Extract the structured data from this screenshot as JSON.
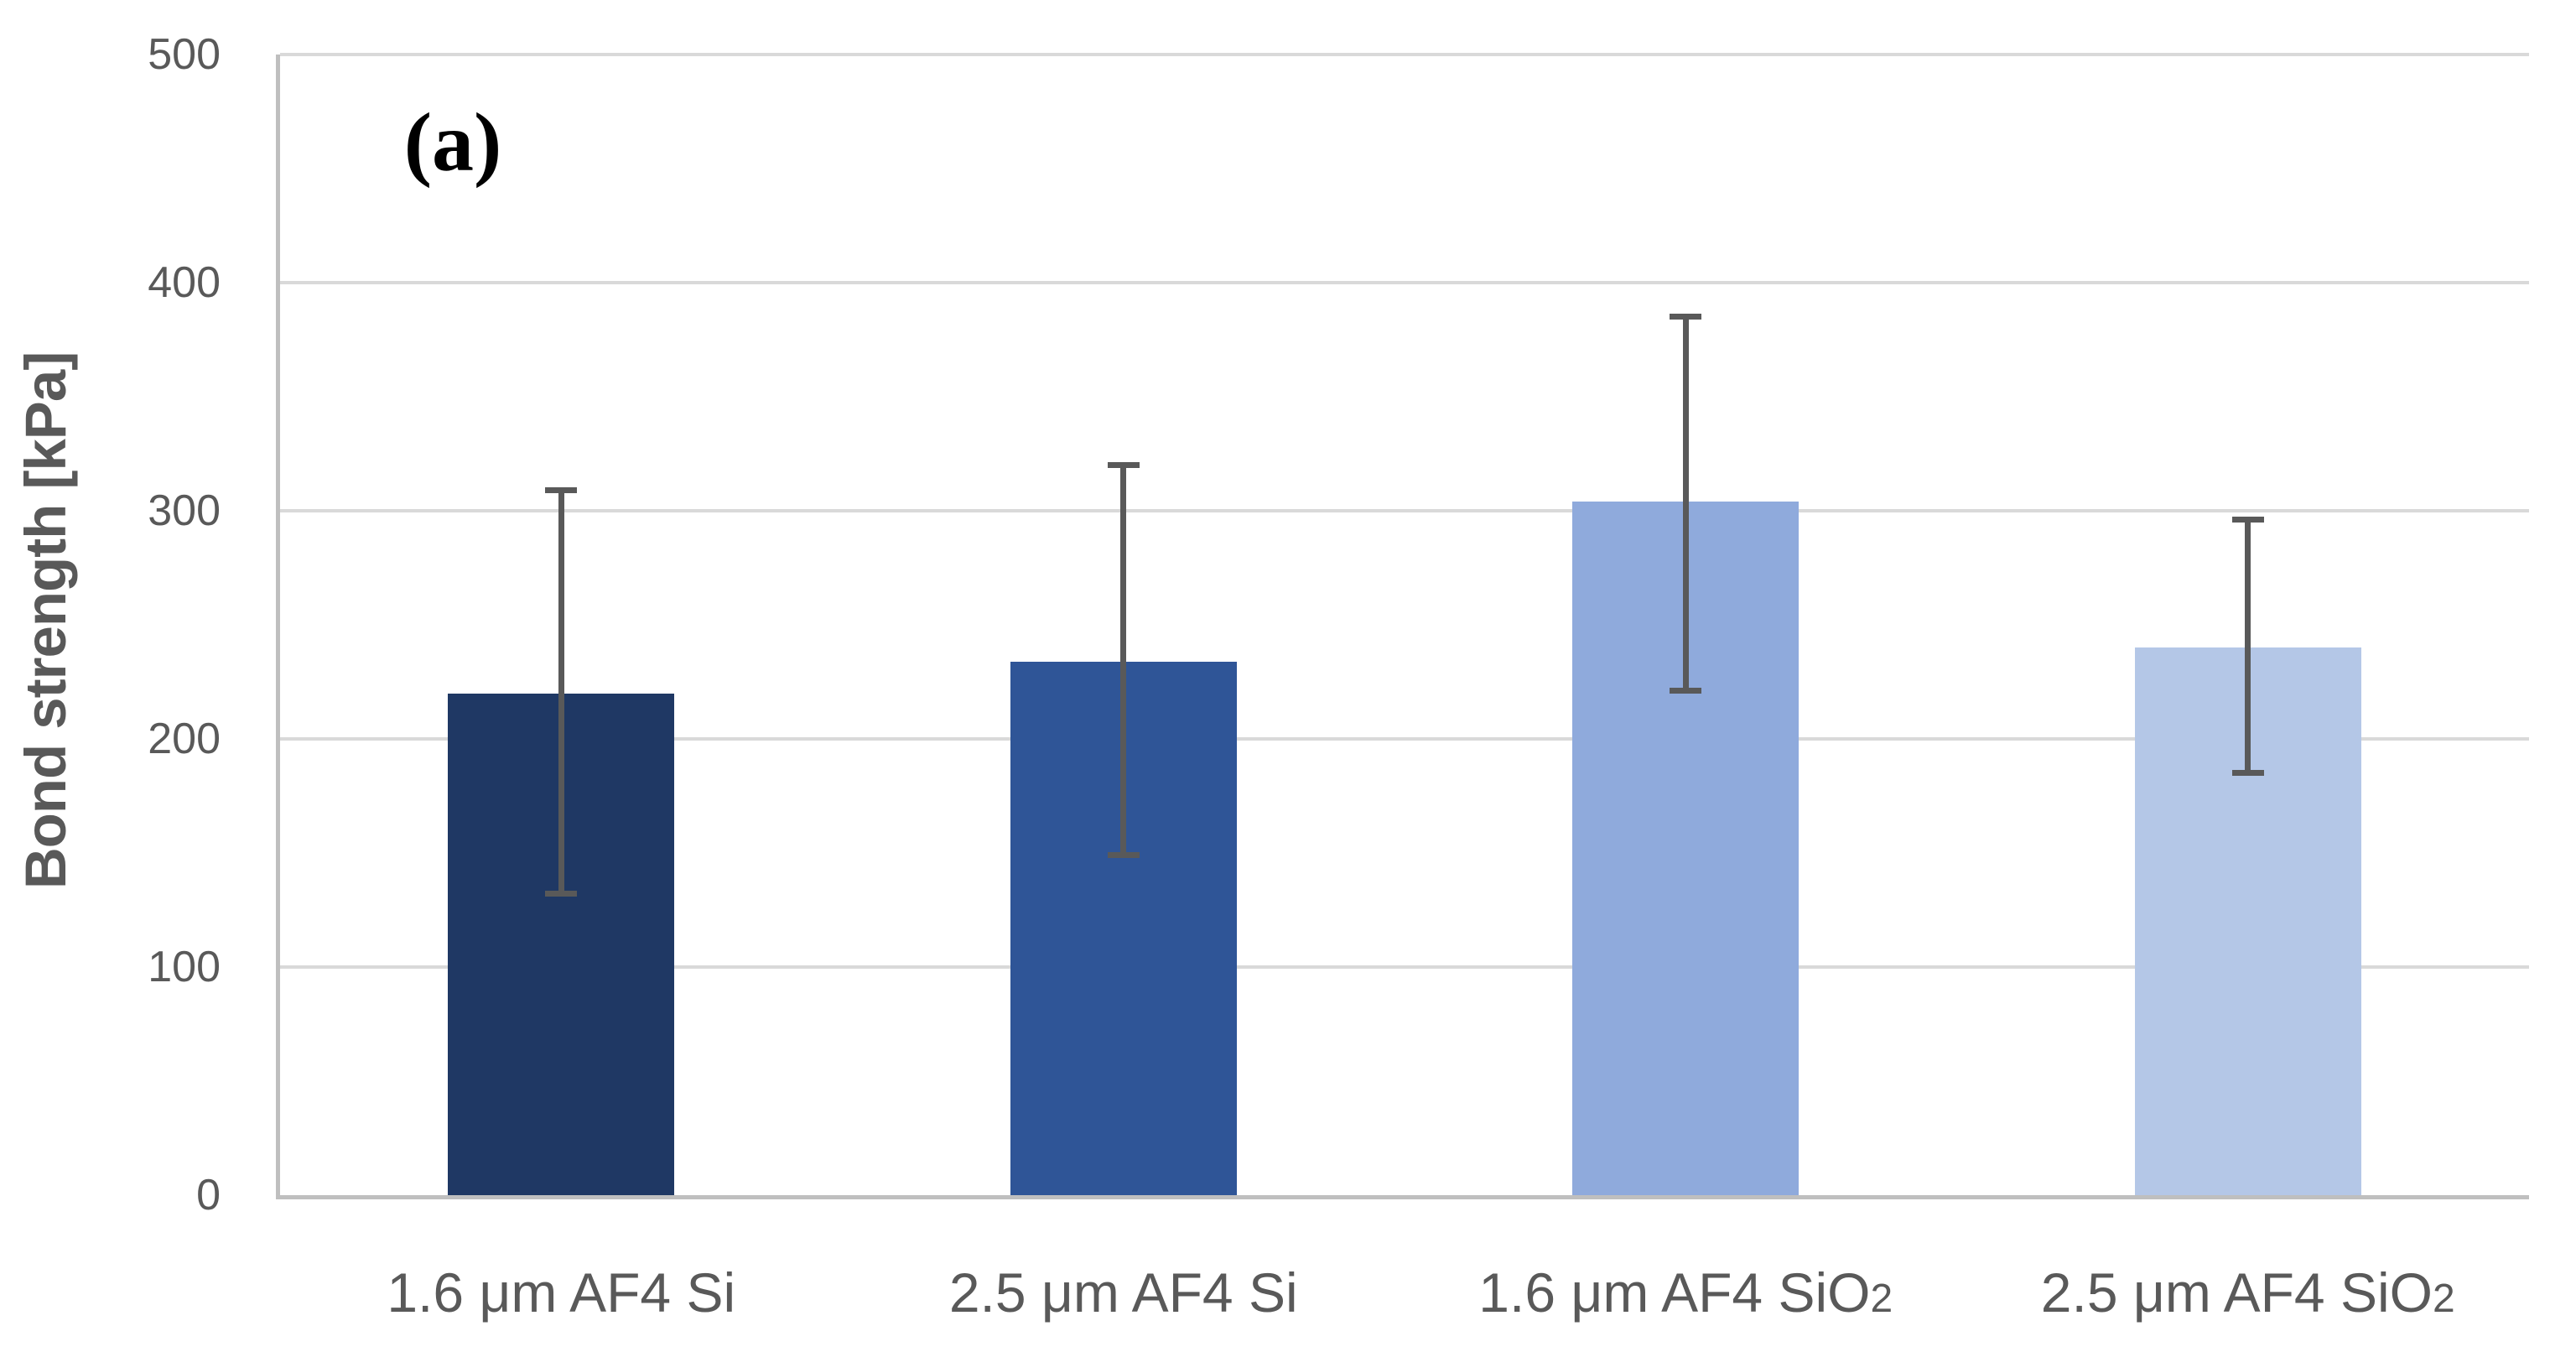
{
  "chart_data": {
    "type": "bar",
    "title": "",
    "annotation": "(a)",
    "ylabel": "Bond strength [kPa]",
    "xlabel": "",
    "ylim": [
      0,
      500
    ],
    "yticks": [
      0,
      100,
      200,
      300,
      400,
      500
    ],
    "grid": "horizontal",
    "legend": "none",
    "categories": [
      {
        "text": "1.6 μm AF4 Si",
        "subscript": ""
      },
      {
        "text": "2.5 μm AF4 Si",
        "subscript": ""
      },
      {
        "text": "1.6 μm AF4 SiO",
        "subscript": "2"
      },
      {
        "text": "2.5 μm AF4 SiO",
        "subscript": "2"
      }
    ],
    "series": [
      {
        "name": "Bond strength",
        "values": [
          220,
          234,
          304,
          240
        ],
        "error_low": [
          132,
          149,
          221,
          185
        ],
        "error_high": [
          309,
          320,
          385,
          296
        ]
      }
    ],
    "bar_colors": [
      "#1F3864",
      "#2F5597",
      "#8FAADC",
      "#B4C7E7"
    ],
    "colors": {
      "gridline": "#D9D9D9",
      "axis": "#BFBFBF",
      "error_bar": "#595959",
      "text": "#595959",
      "annotation": "#000000",
      "background": "#FFFFFF"
    }
  }
}
